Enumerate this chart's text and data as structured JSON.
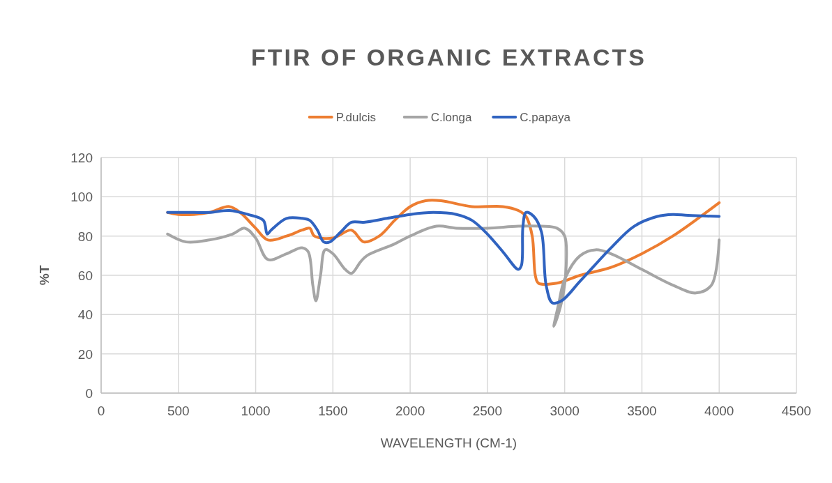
{
  "chart_data": {
    "type": "line",
    "title": "FTIR OF ORGANIC EXTRACTS",
    "xlabel": "WAVELENGTH (CM-1)",
    "ylabel": "%T",
    "xlim": [
      0,
      4500
    ],
    "xticks": [
      0,
      500,
      1000,
      1500,
      2000,
      2500,
      3000,
      3500,
      4000,
      4500
    ],
    "ylim": [
      0,
      120
    ],
    "yticks": [
      0,
      20,
      40,
      60,
      80,
      100,
      120
    ],
    "grid": true,
    "legend": "top",
    "marker": "none",
    "line_style": "solid",
    "series": [
      {
        "name": "P.dulcis",
        "color": "#ed7d31",
        "x": [
          430,
          500,
          600,
          700,
          830,
          900,
          1000,
          1080,
          1200,
          1300,
          1350,
          1380,
          1500,
          1620,
          1700,
          1800,
          1900,
          2000,
          2100,
          2200,
          2400,
          2600,
          2700,
          2750,
          2790,
          2810,
          2830,
          2950,
          3100,
          3300,
          3500,
          3700,
          4000
        ],
        "values": [
          92,
          91,
          91,
          92,
          95,
          92,
          84,
          78,
          80,
          83,
          84,
          80,
          79,
          83,
          77,
          80,
          88,
          95,
          98,
          98,
          95,
          95,
          93,
          90,
          80,
          60,
          56,
          56,
          60,
          64,
          71,
          80,
          97
        ]
      },
      {
        "name": "C.longa",
        "color": "#a5a5a5",
        "x": [
          430,
          550,
          700,
          850,
          930,
          1000,
          1080,
          1200,
          1300,
          1340,
          1370,
          1390,
          1420,
          1450,
          1500,
          1580,
          1620,
          1680,
          1720,
          1900,
          2000,
          2170,
          2300,
          2500,
          2700,
          2850,
          2950,
          3000,
          3010,
          2990,
          2950,
          2930,
          2960,
          3000,
          3100,
          3200,
          3300,
          3500,
          3700,
          3850,
          3950,
          4000
        ],
        "values": [
          81,
          77,
          78,
          81,
          84,
          79,
          68,
          71,
          74,
          72,
          55,
          47,
          60,
          73,
          71,
          63,
          61,
          67,
          70,
          76,
          80,
          85,
          84,
          84,
          85,
          85,
          84,
          80,
          65,
          50,
          38,
          34,
          45,
          58,
          70,
          73,
          71,
          63,
          55,
          51,
          55,
          78
        ]
      },
      {
        "name": "C.papaya",
        "color": "#3063c0",
        "x": [
          430,
          600,
          700,
          830,
          950,
          1050,
          1075,
          1100,
          1200,
          1300,
          1350,
          1400,
          1440,
          1480,
          1550,
          1620,
          1700,
          1850,
          2000,
          2150,
          2300,
          2400,
          2500,
          2600,
          2700,
          2720,
          2730,
          2750,
          2800,
          2850,
          2880,
          2920,
          2980,
          3100,
          3300,
          3450,
          3600,
          3700,
          3800,
          4000
        ],
        "values": [
          92,
          92,
          92,
          93,
          91,
          88,
          81,
          83,
          89,
          89,
          88,
          83,
          77,
          77,
          82,
          87,
          87,
          89,
          91,
          92,
          91,
          88,
          81,
          72,
          63,
          65,
          85,
          92,
          90,
          82,
          55,
          46,
          47,
          57,
          74,
          85,
          90,
          91,
          90.5,
          90
        ]
      }
    ]
  }
}
